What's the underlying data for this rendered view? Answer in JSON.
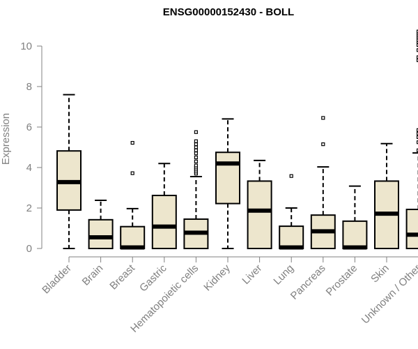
{
  "chart_data": {
    "type": "boxplot",
    "title": "ENSG00000152430 - BOLL",
    "xlabel": "",
    "ylabel": "Expression",
    "ylim": [
      0,
      10.5
    ],
    "yticks": [
      0,
      2,
      4,
      6,
      8,
      10
    ],
    "grid": false,
    "legend": "none",
    "box_fill": "#ede6cd",
    "categories": [
      "Bladder",
      "Brain",
      "Breast",
      "Gastric",
      "Hematopoietic cells",
      "Kidney",
      "Liver",
      "Lung",
      "Pancreas",
      "Prostate",
      "Skin",
      "Unknown / Other"
    ],
    "boxes": [
      {
        "category": "Bladder",
        "whisker_low": 0,
        "q1": 1.9,
        "median": 3.28,
        "q3": 4.82,
        "whisker_high": 7.6,
        "outliers": []
      },
      {
        "category": "Brain",
        "whisker_low": 0,
        "q1": 0,
        "median": 0.55,
        "q3": 1.42,
        "whisker_high": 2.38,
        "outliers": []
      },
      {
        "category": "Breast",
        "whisker_low": 0,
        "q1": 0,
        "median": 0.05,
        "q3": 1.08,
        "whisker_high": 1.97,
        "outliers": [
          3.72,
          5.22
        ]
      },
      {
        "category": "Gastric",
        "whisker_low": 0,
        "q1": 0,
        "median": 1.08,
        "q3": 2.62,
        "whisker_high": 4.2,
        "outliers": []
      },
      {
        "category": "Hematopoietic cells",
        "whisker_low": 0,
        "q1": 0,
        "median": 0.78,
        "q3": 1.45,
        "whisker_high": 3.55,
        "outliers": [
          3.7,
          3.8,
          3.9,
          4.0,
          4.1,
          4.3,
          4.5,
          4.7,
          4.85,
          5.0,
          5.15,
          5.3,
          5.75
        ]
      },
      {
        "category": "Kidney",
        "whisker_low": 0,
        "q1": 2.22,
        "median": 4.2,
        "q3": 4.75,
        "whisker_high": 6.4,
        "outliers": []
      },
      {
        "category": "Liver",
        "whisker_low": 0,
        "q1": 0,
        "median": 1.87,
        "q3": 3.33,
        "whisker_high": 4.35,
        "outliers": []
      },
      {
        "category": "Lung",
        "whisker_low": 0,
        "q1": 0,
        "median": 0.05,
        "q3": 1.1,
        "whisker_high": 2.0,
        "outliers": [
          3.58
        ]
      },
      {
        "category": "Pancreas",
        "whisker_low": 0,
        "q1": 0,
        "median": 0.85,
        "q3": 1.65,
        "whisker_high": 4.03,
        "outliers": [
          5.15,
          6.45
        ]
      },
      {
        "category": "Prostate",
        "whisker_low": 0,
        "q1": 0,
        "median": 0.05,
        "q3": 1.35,
        "whisker_high": 3.08,
        "outliers": []
      },
      {
        "category": "Skin",
        "whisker_low": 0,
        "q1": 0,
        "median": 1.72,
        "q3": 3.33,
        "whisker_high": 5.18,
        "outliers": []
      },
      {
        "category": "Unknown / Other",
        "whisker_low": 0,
        "q1": 0,
        "median": 0.68,
        "q3": 1.93,
        "whisker_high": 4.72,
        "outliers": [
          4.85,
          5.25,
          5.5,
          5.68,
          5.85,
          9.3,
          9.45,
          9.8,
          10.05,
          10.2,
          10.3,
          10.42,
          10.52,
          10.62,
          10.72
        ]
      }
    ]
  }
}
